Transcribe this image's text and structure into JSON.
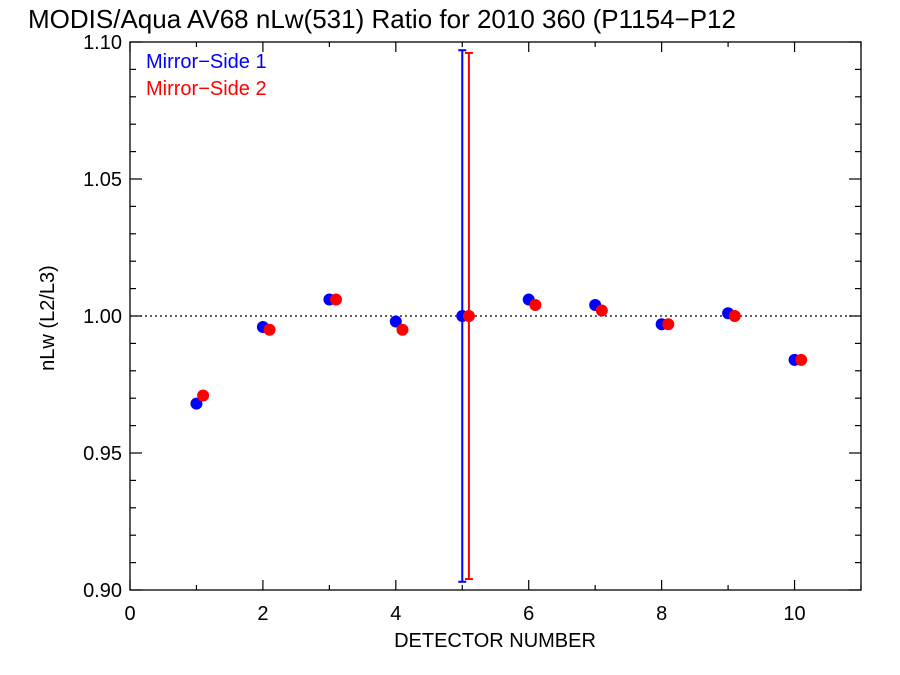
{
  "chart_data": {
    "type": "scatter",
    "title": "MODIS/Aqua AV68 nLw(531) Ratio for 2010 360 (P1154−P12",
    "xlabel": "DETECTOR NUMBER",
    "ylabel": "nLw (L2/L3)",
    "xlim": [
      0,
      11
    ],
    "ylim": [
      0.9,
      1.1
    ],
    "x_ticks": [
      "0",
      "2",
      "4",
      "6",
      "8",
      "10"
    ],
    "y_ticks": [
      "0.90",
      "0.95",
      "1.00",
      "1.05",
      "1.10"
    ],
    "reference_line": {
      "y": 1.0,
      "style": "dotted"
    },
    "legend_placement": "top-left",
    "series": [
      {
        "name": "Mirror−Side 1",
        "color": "#0000ff",
        "x": [
          1,
          2,
          3,
          4,
          5,
          6,
          7,
          8,
          9,
          10
        ],
        "y": [
          0.968,
          0.996,
          1.006,
          0.998,
          1.0,
          1.006,
          1.004,
          0.997,
          1.001,
          0.984
        ],
        "error_bar": {
          "x": 5,
          "low": 0.903,
          "high": 1.097
        }
      },
      {
        "name": "Mirror−Side 2",
        "color": "#ff0000",
        "x": [
          1.1,
          2.1,
          3.1,
          4.1,
          5.1,
          6.1,
          7.1,
          8.1,
          9.1,
          10.1
        ],
        "y": [
          0.971,
          0.995,
          1.006,
          0.995,
          1.0,
          1.004,
          1.002,
          0.997,
          1.0,
          0.984
        ],
        "error_bar": {
          "x": 5.1,
          "low": 0.904,
          "high": 1.096
        }
      }
    ]
  }
}
